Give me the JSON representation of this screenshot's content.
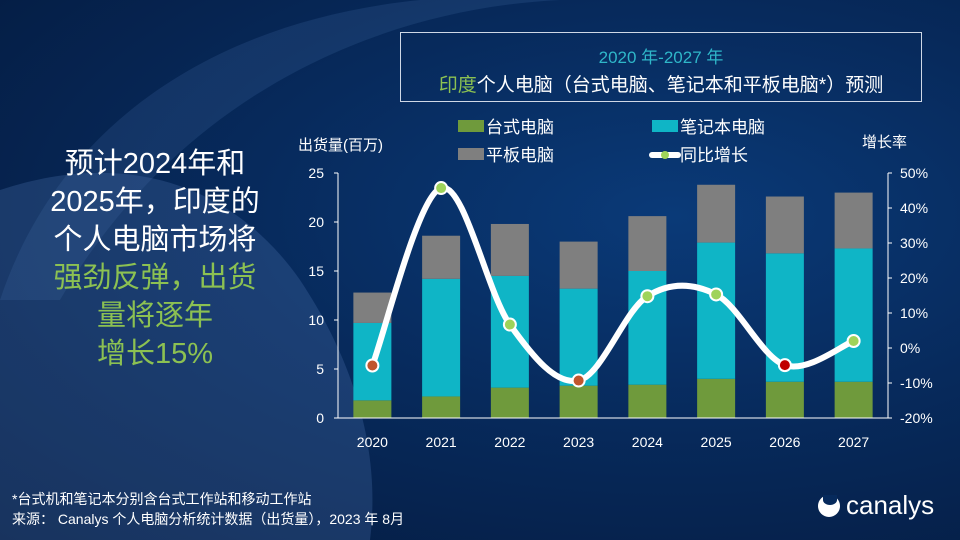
{
  "title": {
    "line1": "2020 年-2027 年",
    "line2_highlight": "印度",
    "line2_rest": "个人电脑（台式电脑、笔记本和平板电脑*）预测"
  },
  "headline": {
    "part1": "预计2024年和2025年，印度的个人电脑市场将",
    "part2": "强劲反弹，出货量将逐年",
    "part3": "增长15%"
  },
  "footnote": "*台式机和笔记本分别含台式工作站和移动工作站",
  "source": "来源： Canalys 个人电脑分析统计数据（出货量），2023 年 8月",
  "logo": "canalys",
  "chart_data": {
    "type": "bar",
    "stacked": true,
    "categories": [
      "2020",
      "2021",
      "2022",
      "2023",
      "2024",
      "2025",
      "2026",
      "2027"
    ],
    "ylabel": "出货量(百万)",
    "ylabel_right": "增长率",
    "ylim": [
      0,
      25
    ],
    "yticks": [
      "0",
      "5",
      "10",
      "15",
      "20",
      "25"
    ],
    "ylim_right": [
      -20,
      50
    ],
    "yticks_right": [
      "-20%",
      "-10%",
      "0%",
      "10%",
      "20%",
      "30%",
      "40%",
      "50%"
    ],
    "series": [
      {
        "name": "台式电脑",
        "color": "#6f9a3c",
        "values": [
          1.8,
          2.2,
          3.1,
          3.3,
          3.4,
          4.0,
          3.7,
          3.7
        ]
      },
      {
        "name": "笔记本电脑",
        "color": "#0fb5c6",
        "values": [
          7.9,
          12.0,
          11.4,
          9.9,
          11.6,
          13.9,
          13.1,
          13.6
        ]
      },
      {
        "name": "平板电脑",
        "color": "#7f7f7f",
        "values": [
          3.1,
          4.4,
          5.3,
          4.8,
          5.6,
          5.9,
          5.8,
          5.7
        ]
      }
    ],
    "line": {
      "name": "同比增长",
      "axis": "right",
      "values": [
        -5,
        45.7,
        6.7,
        -9.3,
        14.8,
        15.3,
        -4.9,
        2.0
      ],
      "marker_colors": [
        "#c0562e",
        "#9ed35a",
        "#9ed35a",
        "#c0562e",
        "#9ed35a",
        "#9ed35a",
        "#c00000",
        "#9ed35a"
      ]
    },
    "legend": "top"
  }
}
